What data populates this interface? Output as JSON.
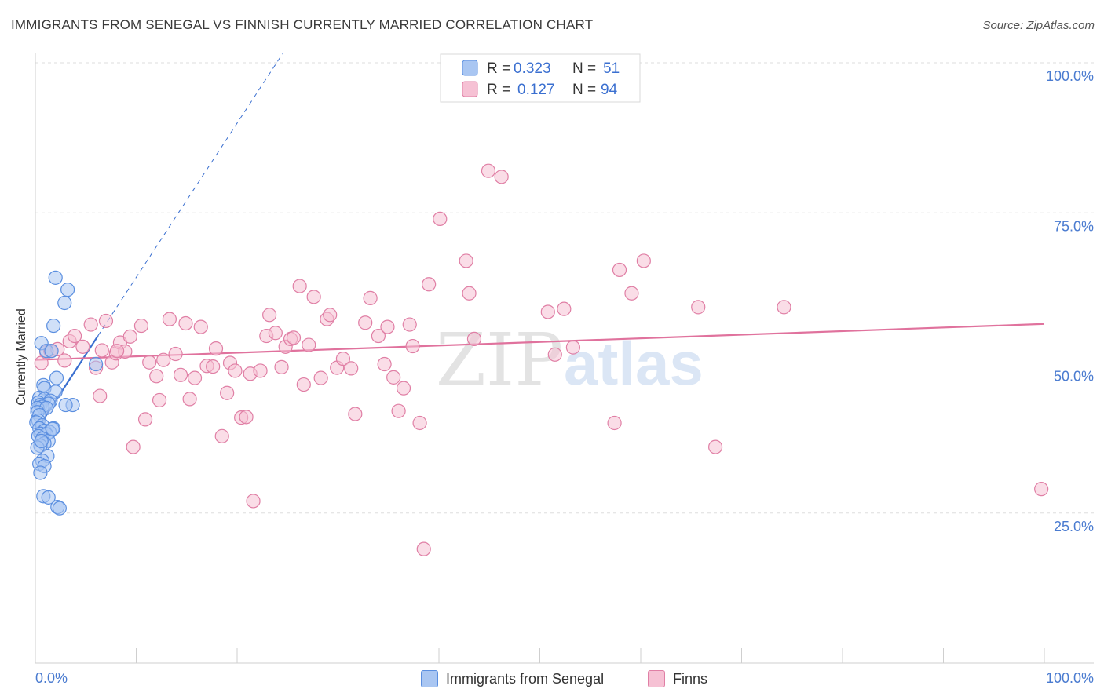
{
  "title": "IMMIGRANTS FROM SENEGAL VS FINNISH CURRENTLY MARRIED CORRELATION CHART",
  "source": "Source: ZipAtlas.com",
  "watermark": {
    "zip": "ZIP",
    "atlas": "atlas"
  },
  "legend_top": [
    {
      "r_label": "R =",
      "r_value": "0.323",
      "n_label": "N =",
      "n_value": "51"
    },
    {
      "r_label": "R =",
      "r_value": "0.127",
      "n_label": "N =",
      "n_value": "94"
    }
  ],
  "chart_data": {
    "type": "scatter",
    "ylabel": "Currently Married",
    "xlim": [
      0,
      100
    ],
    "ylim": [
      0,
      100
    ],
    "x_tick_labels": {
      "left": "0.0%",
      "right": "100.0%"
    },
    "y_ticks": [
      {
        "value": 100,
        "label": "100.0%"
      },
      {
        "value": 75,
        "label": "75.0%"
      },
      {
        "value": 50,
        "label": "50.0%"
      },
      {
        "value": 25,
        "label": "25.0%"
      }
    ],
    "series": [
      {
        "name": "Immigrants from Senegal",
        "color": "#5b8fe0",
        "fill": "#a9c6f2",
        "trend": {
          "x0": 0,
          "y0": 38.5,
          "x1": 6.2,
          "y1": 54.5,
          "dash_x1": 24.5,
          "dash_y1": 101.5,
          "color": "#3a6fd0"
        },
        "points": [
          [
            2.0,
            64.2
          ],
          [
            3.2,
            62.2
          ],
          [
            2.9,
            60.0
          ],
          [
            1.8,
            56.2
          ],
          [
            0.6,
            53.3
          ],
          [
            1.1,
            52.0
          ],
          [
            1.6,
            52.0
          ],
          [
            0.8,
            46.3
          ],
          [
            0.9,
            45.8
          ],
          [
            2.0,
            45.2
          ],
          [
            0.4,
            44.2
          ],
          [
            0.9,
            44.0
          ],
          [
            1.5,
            43.7
          ],
          [
            0.3,
            43.4
          ],
          [
            0.5,
            43.0
          ],
          [
            1.3,
            43.2
          ],
          [
            0.7,
            42.7
          ],
          [
            0.2,
            42.5
          ],
          [
            1.1,
            42.5
          ],
          [
            0.2,
            41.8
          ],
          [
            0.4,
            41.3
          ],
          [
            0.3,
            40.4
          ],
          [
            0.1,
            40.1
          ],
          [
            0.7,
            39.6
          ],
          [
            1.8,
            39.1
          ],
          [
            0.4,
            39.1
          ],
          [
            0.9,
            38.7
          ],
          [
            1.4,
            38.5
          ],
          [
            0.5,
            38.2
          ],
          [
            1.1,
            38.1
          ],
          [
            0.3,
            37.8
          ],
          [
            0.7,
            37.4
          ],
          [
            1.3,
            37.0
          ],
          [
            0.9,
            36.6
          ],
          [
            0.5,
            36.2
          ],
          [
            0.2,
            35.9
          ],
          [
            1.2,
            34.5
          ],
          [
            0.7,
            33.7
          ],
          [
            0.4,
            33.2
          ],
          [
            0.9,
            32.8
          ],
          [
            0.5,
            31.7
          ],
          [
            0.8,
            27.8
          ],
          [
            1.3,
            27.6
          ],
          [
            2.2,
            26.0
          ],
          [
            2.4,
            25.8
          ],
          [
            3.7,
            43.0
          ],
          [
            3.0,
            43.0
          ],
          [
            2.1,
            47.5
          ],
          [
            0.6,
            37.0
          ],
          [
            1.7,
            39.0
          ],
          [
            6.0,
            49.8
          ]
        ]
      },
      {
        "name": "Finns",
        "color": "#e07fa5",
        "fill": "#f6c1d4",
        "trend": {
          "x0": 0,
          "y0": 50.5,
          "x1": 100,
          "y1": 56.5,
          "color": "#e0729d"
        },
        "points": [
          [
            0.6,
            50.0
          ],
          [
            1.1,
            51.8
          ],
          [
            1.5,
            52.0
          ],
          [
            2.2,
            52.3
          ],
          [
            2.9,
            50.4
          ],
          [
            3.4,
            53.6
          ],
          [
            3.9,
            54.5
          ],
          [
            4.7,
            52.7
          ],
          [
            5.5,
            56.4
          ],
          [
            6.0,
            49.2
          ],
          [
            6.6,
            52.1
          ],
          [
            6.4,
            44.5
          ],
          [
            7.0,
            57.0
          ],
          [
            7.6,
            50.1
          ],
          [
            8.0,
            51.6
          ],
          [
            8.4,
            53.4
          ],
          [
            8.9,
            51.9
          ],
          [
            9.4,
            54.4
          ],
          [
            9.7,
            36.0
          ],
          [
            10.5,
            56.2
          ],
          [
            10.9,
            40.6
          ],
          [
            11.3,
            50.1
          ],
          [
            12.0,
            47.8
          ],
          [
            12.3,
            43.8
          ],
          [
            12.7,
            50.5
          ],
          [
            13.3,
            57.3
          ],
          [
            13.9,
            51.5
          ],
          [
            14.4,
            48.0
          ],
          [
            14.9,
            56.6
          ],
          [
            15.3,
            44.0
          ],
          [
            15.8,
            47.5
          ],
          [
            16.4,
            56.0
          ],
          [
            17.0,
            49.5
          ],
          [
            17.6,
            49.4
          ],
          [
            17.9,
            52.4
          ],
          [
            18.5,
            37.8
          ],
          [
            19.0,
            45.0
          ],
          [
            19.3,
            50.0
          ],
          [
            19.8,
            48.7
          ],
          [
            20.4,
            40.9
          ],
          [
            20.9,
            41.0
          ],
          [
            21.3,
            48.2
          ],
          [
            21.6,
            27.0
          ],
          [
            22.3,
            48.7
          ],
          [
            22.9,
            54.5
          ],
          [
            23.2,
            58.0
          ],
          [
            23.8,
            55.0
          ],
          [
            24.4,
            49.3
          ],
          [
            24.8,
            52.7
          ],
          [
            25.3,
            54.0
          ],
          [
            25.6,
            54.2
          ],
          [
            26.2,
            62.8
          ],
          [
            26.6,
            46.4
          ],
          [
            27.1,
            53.0
          ],
          [
            27.6,
            61.0
          ],
          [
            28.3,
            47.5
          ],
          [
            28.9,
            57.3
          ],
          [
            29.2,
            58.0
          ],
          [
            29.9,
            49.2
          ],
          [
            30.5,
            50.7
          ],
          [
            31.3,
            49.1
          ],
          [
            31.7,
            41.5
          ],
          [
            32.7,
            56.7
          ],
          [
            33.2,
            60.8
          ],
          [
            34.0,
            54.5
          ],
          [
            34.6,
            49.8
          ],
          [
            34.9,
            56.0
          ],
          [
            35.5,
            47.6
          ],
          [
            36.0,
            42.0
          ],
          [
            36.5,
            45.8
          ],
          [
            37.1,
            56.4
          ],
          [
            37.4,
            52.8
          ],
          [
            38.1,
            40.0
          ],
          [
            38.5,
            19.0
          ],
          [
            39.0,
            63.1
          ],
          [
            40.1,
            74.0
          ],
          [
            42.7,
            67.0
          ],
          [
            43.0,
            61.6
          ],
          [
            43.5,
            54.0
          ],
          [
            44.9,
            82.0
          ],
          [
            46.2,
            81.0
          ],
          [
            50.8,
            58.5
          ],
          [
            51.5,
            51.4
          ],
          [
            52.4,
            59.0
          ],
          [
            53.3,
            52.6
          ],
          [
            57.4,
            40.0
          ],
          [
            57.9,
            65.5
          ],
          [
            59.1,
            61.6
          ],
          [
            60.3,
            67.0
          ],
          [
            65.7,
            59.3
          ],
          [
            67.4,
            36.0
          ],
          [
            74.2,
            59.3
          ],
          [
            99.7,
            29.0
          ],
          [
            8.1,
            52.0
          ]
        ]
      }
    ]
  }
}
